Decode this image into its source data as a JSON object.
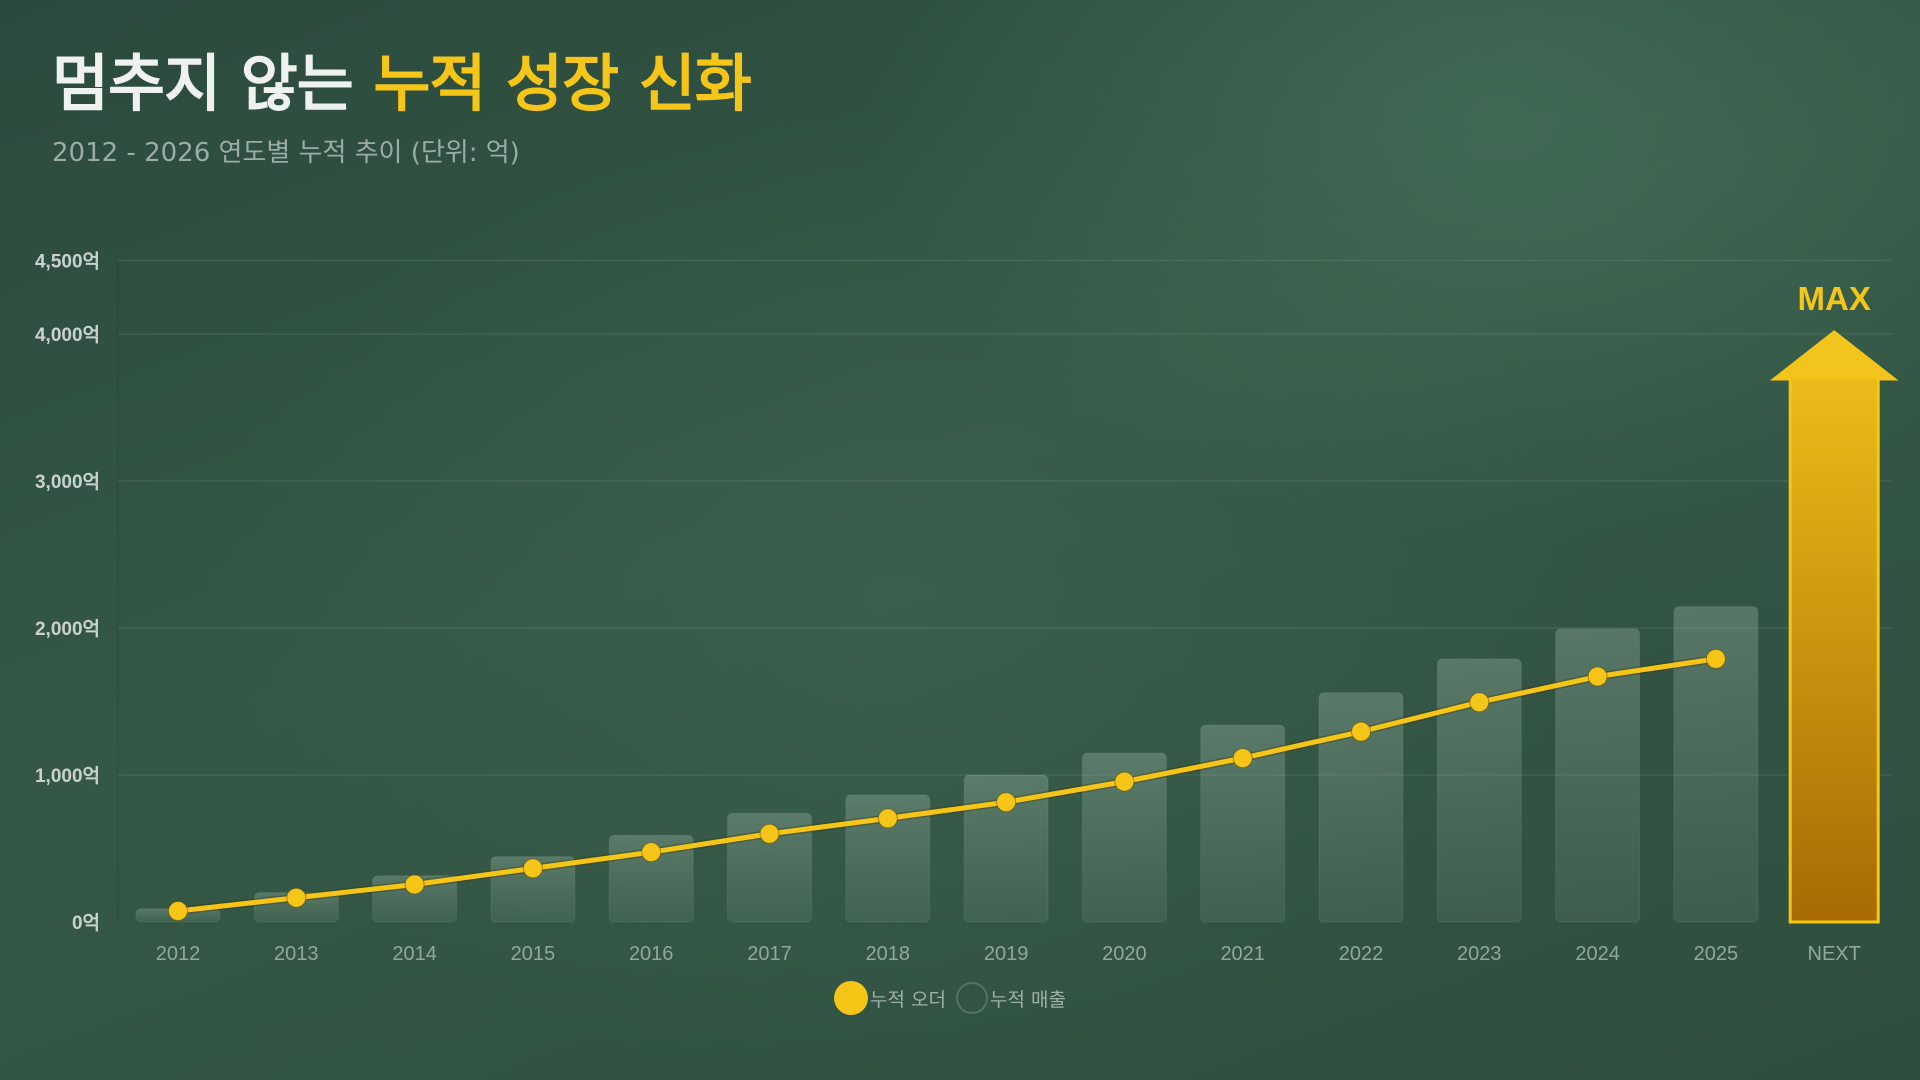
{
  "header": {
    "title_plain": "멈추지 않는 ",
    "title_highlight": "누적 성장 신화",
    "subtitle": "2012 - 2026 연도별 누적 추이 (단위: 억)"
  },
  "colors": {
    "accent": "#f5c518",
    "bar_fill": "rgba(170,195,180,0.18)",
    "grid": "rgba(180,200,190,0.12)",
    "axis_text": "#c9d3ce",
    "tick_text": "#93a79c",
    "arrow_top": "#f2c21a",
    "arrow_bottom": "#a86a05"
  },
  "legend": {
    "items": [
      {
        "label": "누적 오더",
        "type": "line"
      },
      {
        "label": "누적 매출",
        "type": "bar"
      }
    ]
  },
  "chart_data": {
    "type": "bar",
    "title": "멈추지 않는 누적 성장 신화",
    "subtitle": "2012 - 2026 연도별 누적 추이 (단위: 억)",
    "xlabel": "",
    "ylabel": "",
    "ylim": [
      0,
      4500
    ],
    "yticks": [
      0,
      1000,
      2000,
      3000,
      4000,
      4500
    ],
    "ytick_labels": [
      "0억",
      "1,000억",
      "2,000억",
      "3,000억",
      "4,000억",
      "4,500억"
    ],
    "categories": [
      "2012",
      "2013",
      "2014",
      "2015",
      "2016",
      "2017",
      "2018",
      "2019",
      "2020",
      "2021",
      "2022",
      "2023",
      "2024",
      "2025",
      "NEXT"
    ],
    "series": [
      {
        "name": "누적 매출",
        "type": "bar",
        "values": [
          90,
          200,
          315,
          445,
          590,
          740,
          865,
          1000,
          1150,
          1340,
          1560,
          1790,
          1995,
          2145,
          null
        ]
      },
      {
        "name": "누적 오더",
        "type": "line",
        "values": [
          75,
          165,
          255,
          365,
          475,
          600,
          705,
          815,
          955,
          1115,
          1295,
          1495,
          1670,
          1790,
          null
        ]
      }
    ],
    "annotations": [
      {
        "category": "NEXT",
        "type": "arrow",
        "label": "MAX",
        "to_value": 4000
      }
    ],
    "grid": true,
    "legend_position": "bottom"
  }
}
